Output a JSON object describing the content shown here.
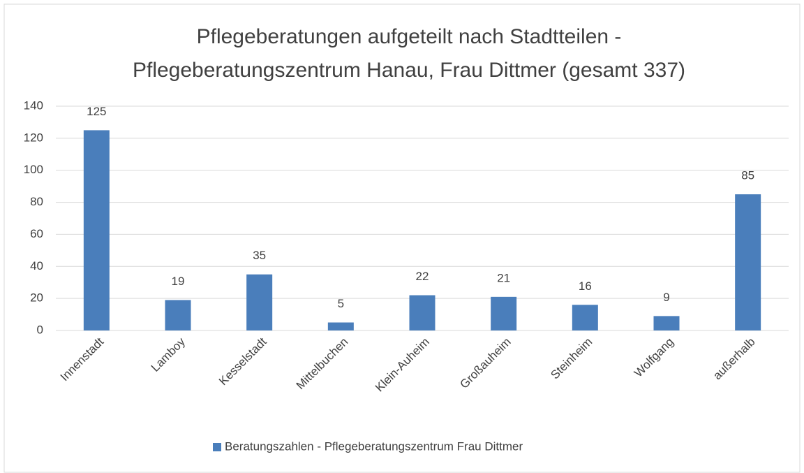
{
  "chart_data": {
    "type": "bar",
    "title": [
      "Pflegeberatungen aufgeteilt nach Stadtteilen -",
      "Pflegeberatungszentrum Hanau, Frau Dittmer (gesamt 337)"
    ],
    "categories": [
      "Innenstadt",
      "Lamboy",
      "Kesselstadt",
      "Mittelbuchen",
      "Klein-Auheim",
      "Großauheim",
      "Steinheim",
      "Wolfgang",
      "außerhalb"
    ],
    "series": [
      {
        "name": "Beratungszahlen - Pflegeberatungszentrum Frau Dittmer",
        "color": "#4a7ebb",
        "values": [
          125,
          19,
          35,
          5,
          22,
          21,
          16,
          9,
          85
        ]
      }
    ],
    "ylim": [
      0,
      140
    ],
    "yticks": [
      0,
      20,
      40,
      60,
      80,
      100,
      120,
      140
    ],
    "grid": true,
    "legend": "bottom",
    "data_labels": true
  }
}
